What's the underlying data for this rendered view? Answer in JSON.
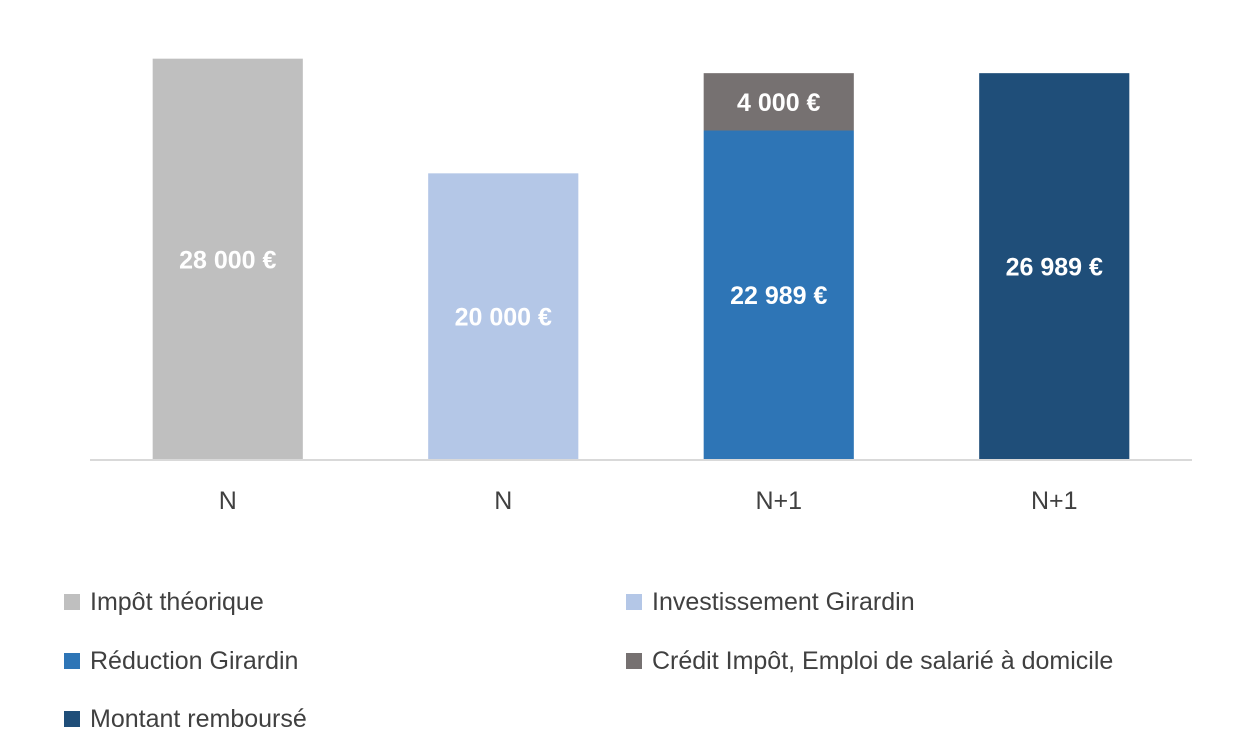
{
  "chart_data": {
    "type": "bar",
    "stacked": true,
    "categories": [
      "N",
      "N",
      "N+1",
      "N+1"
    ],
    "ylim": [
      0,
      30000
    ],
    "grid": false,
    "legend_position": "bottom",
    "series": [
      {
        "name": "Impôt théorique",
        "color": "#bfbfbf",
        "values": [
          28000,
          0,
          0,
          0
        ],
        "labels": [
          "28 000 €",
          "",
          "",
          ""
        ]
      },
      {
        "name": "Investissement Girardin",
        "color": "#b4c7e7",
        "values": [
          0,
          20000,
          0,
          0
        ],
        "labels": [
          "",
          "20 000 €",
          "",
          ""
        ]
      },
      {
        "name": "Réduction Girardin",
        "color": "#2e75b6",
        "values": [
          0,
          0,
          22989,
          0
        ],
        "labels": [
          "",
          "",
          "22 989 €",
          ""
        ]
      },
      {
        "name": "Crédit Impôt, Emploi de salarié à domicile",
        "color": "#767171",
        "values": [
          0,
          0,
          4000,
          0
        ],
        "labels": [
          "",
          "",
          "4 000 €",
          ""
        ]
      },
      {
        "name": "Montant remboursé",
        "color": "#1f4e79",
        "values": [
          0,
          0,
          0,
          26989
        ],
        "labels": [
          "",
          "",
          "",
          "26 989 €"
        ]
      }
    ]
  }
}
